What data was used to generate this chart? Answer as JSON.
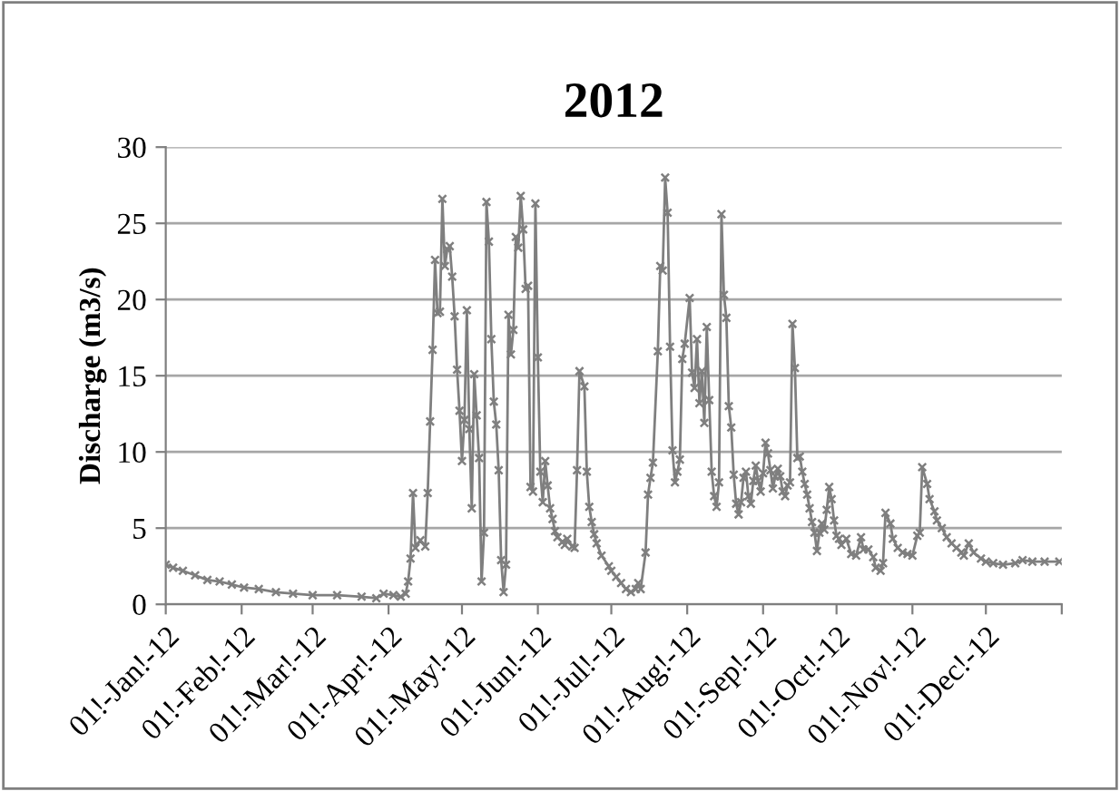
{
  "chart_data": {
    "type": "line",
    "title": "2012",
    "ylabel": "Discharge (m3/s)",
    "ylim": [
      0,
      30
    ],
    "yticks": [
      0,
      5,
      10,
      15,
      20,
      25,
      30
    ],
    "xlim": [
      "2012-01-01",
      "2013-01-01"
    ],
    "xticks": [
      {
        "value": "2012-01-01",
        "label": "01!-Jan!-12"
      },
      {
        "value": "2012-02-01",
        "label": "01!-Feb!-12"
      },
      {
        "value": "2012-03-01",
        "label": "01!-Mar!-12"
      },
      {
        "value": "2012-04-01",
        "label": "01!-Apr!-12"
      },
      {
        "value": "2012-05-01",
        "label": "01!-May!-12"
      },
      {
        "value": "2012-06-01",
        "label": "01!-Jun!-12"
      },
      {
        "value": "2012-07-01",
        "label": "01!-Jul!-12"
      },
      {
        "value": "2012-08-01",
        "label": "01!-Aug!-12"
      },
      {
        "value": "2012-09-01",
        "label": "01!-Sep!-12"
      },
      {
        "value": "2012-10-01",
        "label": "01!-Oct!-12"
      },
      {
        "value": "2012-11-01",
        "label": "01!-Nov!-12"
      },
      {
        "value": "2012-12-01",
        "label": "01!-Dec!-12"
      },
      {
        "value": "2013-01-01",
        "label": null
      }
    ],
    "grid": "y",
    "legend": false,
    "marker": "cross",
    "line_style": "solid",
    "series": [
      {
        "color": "#7f7f7f",
        "x": [
          "2012-01-01",
          "2012-01-04",
          "2012-01-08",
          "2012-01-13",
          "2012-01-18",
          "2012-01-23",
          "2012-01-28",
          "2012-02-02",
          "2012-02-08",
          "2012-02-15",
          "2012-02-22",
          "2012-03-01",
          "2012-03-11",
          "2012-03-21",
          "2012-03-27",
          "2012-03-30",
          "2012-04-03",
          "2012-04-06",
          "2012-04-08",
          "2012-04-09",
          "2012-04-10",
          "2012-04-11",
          "2012-04-12",
          "2012-04-14",
          "2012-04-16",
          "2012-04-17",
          "2012-04-18",
          "2012-04-19",
          "2012-04-20",
          "2012-04-21",
          "2012-04-22",
          "2012-04-23",
          "2012-04-24",
          "2012-04-25",
          "2012-04-26",
          "2012-04-27",
          "2012-04-28",
          "2012-04-29",
          "2012-04-30",
          "2012-05-01",
          "2012-05-02",
          "2012-05-03",
          "2012-05-04",
          "2012-05-05",
          "2012-05-06",
          "2012-05-07",
          "2012-05-08",
          "2012-05-09",
          "2012-05-10",
          "2012-05-11",
          "2012-05-12",
          "2012-05-13",
          "2012-05-14",
          "2012-05-15",
          "2012-05-16",
          "2012-05-17",
          "2012-05-18",
          "2012-05-19",
          "2012-05-20",
          "2012-05-21",
          "2012-05-22",
          "2012-05-23",
          "2012-05-24",
          "2012-05-25",
          "2012-05-26",
          "2012-05-27",
          "2012-05-28",
          "2012-05-29",
          "2012-05-30",
          "2012-05-31",
          "2012-06-01",
          "2012-06-02",
          "2012-06-03",
          "2012-06-04",
          "2012-06-05",
          "2012-06-06",
          "2012-06-07",
          "2012-06-08",
          "2012-06-09",
          "2012-06-11",
          "2012-06-12",
          "2012-06-13",
          "2012-06-15",
          "2012-06-16",
          "2012-06-17",
          "2012-06-18",
          "2012-06-20",
          "2012-06-21",
          "2012-06-22",
          "2012-06-23",
          "2012-06-24",
          "2012-06-25",
          "2012-06-27",
          "2012-06-30",
          "2012-07-01",
          "2012-07-03",
          "2012-07-05",
          "2012-07-07",
          "2012-07-09",
          "2012-07-11",
          "2012-07-12",
          "2012-07-13",
          "2012-07-15",
          "2012-07-16",
          "2012-07-17",
          "2012-07-18",
          "2012-07-20",
          "2012-07-21",
          "2012-07-22",
          "2012-07-23",
          "2012-07-24",
          "2012-07-25",
          "2012-07-26",
          "2012-07-27",
          "2012-07-28",
          "2012-07-29",
          "2012-07-30",
          "2012-07-31",
          "2012-08-02",
          "2012-08-03",
          "2012-08-04",
          "2012-08-05",
          "2012-08-06",
          "2012-08-07",
          "2012-08-08",
          "2012-08-09",
          "2012-08-10",
          "2012-08-11",
          "2012-08-12",
          "2012-08-13",
          "2012-08-14",
          "2012-08-15",
          "2012-08-16",
          "2012-08-17",
          "2012-08-18",
          "2012-08-19",
          "2012-08-20",
          "2012-08-21",
          "2012-08-22",
          "2012-08-23",
          "2012-08-24",
          "2012-08-25",
          "2012-08-26",
          "2012-08-27",
          "2012-08-28",
          "2012-08-29",
          "2012-08-30",
          "2012-08-31",
          "2012-09-01",
          "2012-09-02",
          "2012-09-03",
          "2012-09-04",
          "2012-09-05",
          "2012-09-06",
          "2012-09-07",
          "2012-09-08",
          "2012-09-09",
          "2012-09-10",
          "2012-09-11",
          "2012-09-12",
          "2012-09-13",
          "2012-09-14",
          "2012-09-15",
          "2012-09-16",
          "2012-09-17",
          "2012-09-18",
          "2012-09-19",
          "2012-09-20",
          "2012-09-21",
          "2012-09-22",
          "2012-09-23",
          "2012-09-24",
          "2012-09-25",
          "2012-09-26",
          "2012-09-27",
          "2012-09-28",
          "2012-09-29",
          "2012-09-30",
          "2012-10-01",
          "2012-10-02",
          "2012-10-03",
          "2012-10-05",
          "2012-10-07",
          "2012-10-09",
          "2012-10-11",
          "2012-10-12",
          "2012-10-14",
          "2012-10-16",
          "2012-10-17",
          "2012-10-19",
          "2012-10-20",
          "2012-10-21",
          "2012-10-23",
          "2012-10-24",
          "2012-10-26",
          "2012-10-28",
          "2012-10-30",
          "2012-11-01",
          "2012-11-03",
          "2012-11-04",
          "2012-11-05",
          "2012-11-07",
          "2012-11-08",
          "2012-11-10",
          "2012-11-11",
          "2012-11-13",
          "2012-11-15",
          "2012-11-17",
          "2012-11-19",
          "2012-11-21",
          "2012-11-22",
          "2012-11-24",
          "2012-11-26",
          "2012-11-29",
          "2012-12-01",
          "2012-12-04",
          "2012-12-08",
          "2012-12-13",
          "2012-12-16",
          "2012-12-20",
          "2012-12-25",
          "2012-12-31"
        ],
        "values": [
          2.6,
          2.4,
          2.2,
          1.9,
          1.6,
          1.5,
          1.3,
          1.1,
          1.0,
          0.8,
          0.7,
          0.6,
          0.6,
          0.5,
          0.4,
          0.7,
          0.6,
          0.5,
          0.7,
          1.5,
          3.0,
          7.3,
          3.7,
          4.2,
          3.8,
          7.3,
          12.0,
          16.7,
          22.6,
          19.1,
          19.2,
          26.6,
          22.2,
          23.3,
          23.5,
          21.5,
          18.9,
          15.4,
          12.7,
          9.4,
          12.1,
          19.3,
          11.5,
          6.3,
          15.1,
          12.4,
          9.6,
          1.5,
          4.7,
          26.4,
          23.8,
          17.4,
          13.3,
          11.8,
          8.8,
          2.9,
          0.8,
          2.6,
          19.0,
          16.4,
          18.0,
          24.1,
          23.4,
          26.8,
          24.6,
          20.7,
          20.9,
          7.7,
          7.4,
          26.3,
          16.2,
          8.7,
          6.7,
          9.4,
          7.8,
          6.3,
          5.6,
          4.8,
          4.4,
          4.1,
          3.9,
          4.3,
          3.8,
          3.7,
          8.8,
          15.3,
          14.3,
          8.7,
          6.4,
          5.4,
          4.6,
          4.0,
          3.2,
          2.5,
          2.2,
          1.8,
          1.4,
          1.0,
          0.8,
          1.0,
          1.4,
          1.0,
          3.4,
          7.2,
          8.3,
          9.3,
          16.6,
          22.2,
          21.9,
          28.0,
          25.7,
          16.9,
          10.1,
          8.0,
          8.7,
          9.5,
          16.1,
          17.1,
          20.1,
          15.2,
          14.2,
          17.4,
          13.2,
          15.3,
          11.9,
          18.2,
          13.4,
          8.7,
          7.1,
          6.4,
          8.0,
          25.6,
          20.3,
          18.8,
          13.0,
          11.6,
          8.5,
          6.6,
          5.9,
          6.7,
          8.3,
          8.7,
          7.1,
          6.6,
          8.1,
          9.1,
          8.1,
          7.4,
          8.6,
          10.6,
          9.9,
          8.8,
          7.6,
          8.4,
          8.9,
          8.4,
          7.4,
          7.1,
          7.8,
          8.0,
          18.4,
          15.5,
          9.6,
          9.7,
          8.7,
          7.9,
          7.2,
          6.3,
          5.4,
          4.7,
          3.5,
          4.7,
          5.3,
          4.9,
          6.2,
          7.7,
          6.9,
          5.5,
          4.5,
          4.3,
          3.9,
          4.3,
          3.3,
          3.2,
          4.4,
          3.6,
          3.6,
          3.1,
          2.4,
          2.2,
          2.7,
          6.0,
          5.3,
          4.3,
          3.7,
          3.4,
          3.3,
          3.2,
          4.5,
          4.7,
          9.0,
          7.9,
          6.9,
          6.1,
          5.5,
          5.0,
          4.4,
          4.0,
          3.7,
          3.4,
          3.2,
          4.0,
          3.4,
          3.0,
          2.8,
          2.7,
          2.6,
          2.7,
          2.9,
          2.8,
          2.8,
          2.8
        ]
      }
    ]
  }
}
